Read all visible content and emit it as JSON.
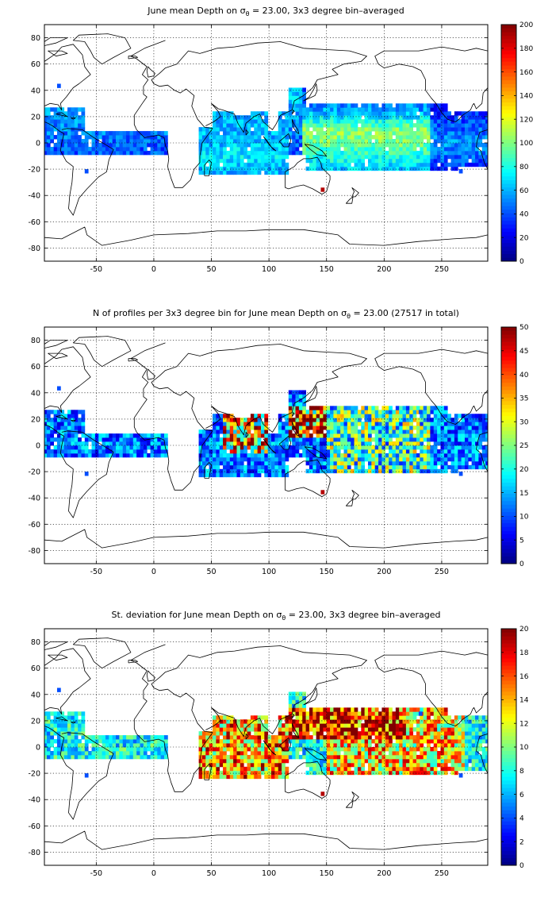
{
  "chart_data": [
    {
      "type": "heatmap",
      "title_prefix": "June mean Depth on ",
      "title_symbol": "σ",
      "title_subscript": "θ",
      "title_suffix": " = 23.00, 3x3 degree bin–averaged",
      "xlim": [
        -95,
        290
      ],
      "ylim": [
        -90,
        90
      ],
      "x_ticks": [
        -50,
        0,
        50,
        100,
        150,
        200,
        250
      ],
      "y_ticks": [
        80,
        60,
        40,
        20,
        0,
        -20,
        -40,
        -60,
        -80
      ],
      "grid": true,
      "colormap": "jet",
      "colorbar": {
        "min": 0,
        "max": 200,
        "ticks": [
          0,
          20,
          40,
          60,
          80,
          100,
          120,
          140,
          160,
          180,
          200
        ]
      },
      "field": "depth"
    },
    {
      "type": "heatmap",
      "title_prefix": "N of profiles per 3x3 degree bin for June mean Depth on ",
      "title_symbol": "σ",
      "title_subscript": "θ",
      "title_suffix": " = 23.00 (27517 in total)",
      "xlim": [
        -95,
        290
      ],
      "ylim": [
        -90,
        90
      ],
      "x_ticks": [
        -50,
        0,
        50,
        100,
        150,
        200,
        250
      ],
      "y_ticks": [
        80,
        60,
        40,
        20,
        0,
        -20,
        -40,
        -60,
        -80
      ],
      "grid": true,
      "colormap": "jet",
      "colorbar": {
        "min": 0,
        "max": 50,
        "ticks": [
          0,
          5,
          10,
          15,
          20,
          25,
          30,
          35,
          40,
          45,
          50
        ]
      },
      "field": "count"
    },
    {
      "type": "heatmap",
      "title_prefix": "St. deviation for June mean Depth on ",
      "title_symbol": "σ",
      "title_subscript": "θ",
      "title_suffix": " = 23.00, 3x3 degree bin–averaged",
      "xlim": [
        -95,
        290
      ],
      "ylim": [
        -90,
        90
      ],
      "x_ticks": [
        -50,
        0,
        50,
        100,
        150,
        200,
        250
      ],
      "y_ticks": [
        80,
        60,
        40,
        20,
        0,
        -20,
        -40,
        -60,
        -80
      ],
      "grid": true,
      "colormap": "jet",
      "colorbar": {
        "min": 0,
        "max": 20,
        "ticks": [
          0,
          2,
          4,
          6,
          8,
          10,
          12,
          14,
          16,
          18,
          20
        ]
      },
      "field": "stdev"
    }
  ]
}
